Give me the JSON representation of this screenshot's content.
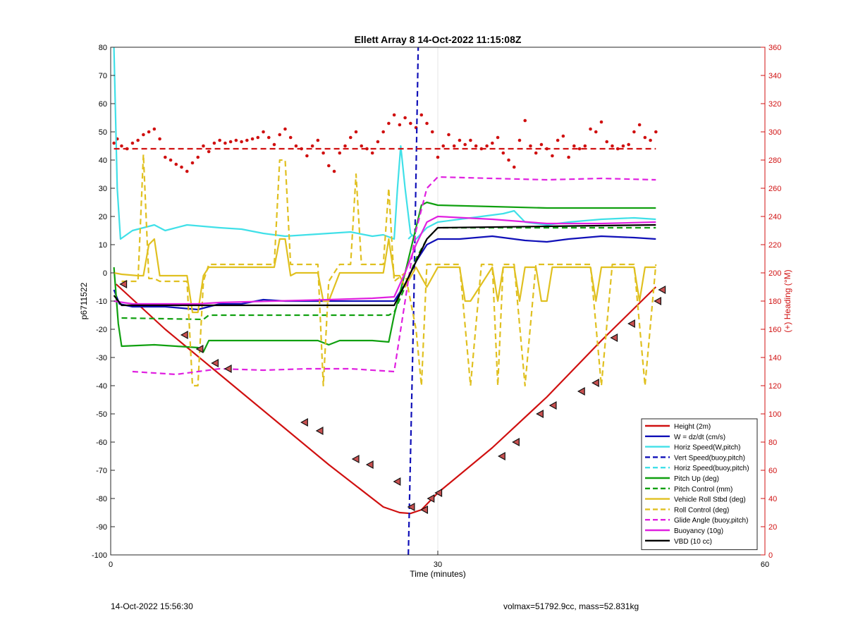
{
  "chart_data": {
    "type": "line",
    "title": "Ellett Array 8 14-Oct-2022 11:15:08Z",
    "xlabel": "Time (minutes)",
    "ylabel": "p6711522",
    "y2label": "(+) Heading (°M)",
    "xlim": [
      0,
      60
    ],
    "ylim": [
      -100,
      80
    ],
    "y2lim": [
      0,
      360
    ],
    "xticks": [
      0,
      30,
      60
    ],
    "yticks": [
      -100,
      -90,
      -80,
      -70,
      -60,
      -50,
      -40,
      -30,
      -20,
      -10,
      0,
      10,
      20,
      30,
      40,
      50,
      60,
      70,
      80
    ],
    "y2ticks": [
      0,
      20,
      40,
      60,
      80,
      100,
      120,
      140,
      160,
      180,
      200,
      220,
      240,
      260,
      280,
      300,
      320,
      340,
      360
    ],
    "grid": "x",
    "legend_position": "bottom-right",
    "colors": {
      "red": "#d01010",
      "blue": "#1010b8",
      "cyan": "#40e0e8",
      "green": "#10a010",
      "yellow": "#e0c020",
      "magenta": "#e020e0",
      "black": "#000000",
      "right_axis": "#d01010"
    },
    "series": [
      {
        "name": "Height (2m)",
        "style": "solid",
        "color": "#d01010",
        "x": [
          0.5,
          5,
          10,
          15,
          20,
          25,
          26.5,
          27.5,
          28.5,
          30,
          35,
          40,
          45,
          50
        ],
        "y": [
          -4,
          -20,
          -36,
          -52,
          -68,
          -83,
          -85,
          -85.3,
          -84,
          -78,
          -62,
          -44,
          -24,
          -5
        ]
      },
      {
        "name": "W = dz/dt (cm/s)",
        "style": "solid",
        "color": "#1010b8",
        "x": [
          0.3,
          0.8,
          2,
          5,
          8,
          9,
          10,
          12,
          14,
          16,
          20,
          24,
          26,
          27,
          28,
          29,
          30,
          32,
          35,
          38,
          40,
          42,
          45,
          48,
          50
        ],
        "y": [
          -6,
          -11,
          -12,
          -12,
          -13,
          -12,
          -11,
          -11,
          -9.5,
          -10,
          -10,
          -10,
          -10,
          -4,
          4,
          10,
          12,
          12,
          13,
          11.5,
          11,
          12,
          13,
          12.5,
          12
        ]
      },
      {
        "name": "Horiz Speed(W,pitch)",
        "style": "solid",
        "color": "#40e0e8",
        "x": [
          0.3,
          0.6,
          0.9,
          2,
          4,
          5,
          7,
          10,
          12,
          14,
          16,
          18,
          20,
          22,
          24,
          25,
          26,
          26.3,
          26.6,
          27,
          27.5,
          28,
          29,
          30,
          32,
          34,
          36,
          37,
          38,
          40,
          42,
          45,
          48,
          50
        ],
        "y": [
          80,
          30,
          12,
          15,
          17,
          15,
          17,
          16,
          15.5,
          14,
          13,
          13.5,
          14,
          14.5,
          13,
          13.5,
          12,
          30,
          45,
          30,
          14,
          12,
          16,
          18,
          19,
          20,
          21,
          22,
          18,
          17,
          18,
          19,
          19.5,
          19
        ]
      },
      {
        "name": "Vert Speed(buoy,pitch)",
        "style": "dashed",
        "color": "#1010b8",
        "x": [
          27.3,
          27.8,
          28.2
        ],
        "y": [
          -100,
          -10,
          80
        ]
      },
      {
        "name": "Horiz Speed(buoy,pitch)",
        "style": "dashed",
        "color": "#40e0e8",
        "x": [
          27.3,
          27.8
        ],
        "y": [
          12,
          14
        ]
      },
      {
        "name": "Pitch Up (deg)",
        "style": "solid",
        "color": "#10a010",
        "x": [
          0.3,
          0.7,
          1,
          4,
          6,
          8,
          8.5,
          9,
          14,
          19,
          20,
          21,
          24,
          25.5,
          26,
          27,
          28.5,
          29,
          30,
          35,
          40,
          45,
          50
        ],
        "y": [
          2,
          -18,
          -26,
          -25.5,
          -26,
          -26.5,
          -28,
          -24,
          -24,
          -24,
          -25.5,
          -24,
          -24,
          -24.5,
          -15,
          0,
          24,
          25,
          24,
          23.5,
          23,
          23,
          23
        ]
      },
      {
        "name": "Pitch Control (mm)",
        "style": "dashed",
        "color": "#10a010",
        "x": [
          1,
          8.5,
          9,
          25.5,
          26,
          27,
          28,
          29,
          30,
          50
        ],
        "y": [
          -16,
          -16.5,
          -15,
          -15,
          -14,
          -5,
          5,
          12,
          16,
          16
        ]
      },
      {
        "name": "Vehicle Roll Stbd (deg)",
        "style": "solid",
        "color": "#e0c020",
        "x": [
          0.3,
          1,
          2.5,
          3,
          3.5,
          4,
          4.5,
          7,
          7.5,
          8,
          8.5,
          9,
          15,
          15.5,
          16,
          16.5,
          17,
          19,
          19.5,
          20,
          21,
          23,
          24,
          25,
          25.5,
          26,
          26.5,
          27,
          28,
          29,
          30,
          31,
          32,
          32.5,
          33,
          35,
          35.5,
          36,
          37,
          37.5,
          38,
          39,
          39.5,
          40,
          40.5,
          41,
          44,
          44.5,
          45,
          46,
          48,
          48.5,
          49,
          50
        ],
        "y": [
          0,
          -0.5,
          -1,
          -1,
          10,
          12,
          -1,
          -1,
          -14,
          -14,
          -1,
          2,
          2,
          12,
          12,
          -1,
          0,
          0,
          -10,
          -10,
          0,
          0,
          0,
          0,
          12,
          -1,
          -1,
          -5,
          2,
          -5,
          2,
          2,
          2,
          -10,
          -10,
          2,
          -10,
          2,
          2,
          -10,
          2,
          2,
          -10,
          -10,
          2,
          2,
          2,
          -10,
          2,
          2,
          2,
          -10,
          2,
          2
        ]
      },
      {
        "name": "Roll Control (deg)",
        "style": "dashed",
        "color": "#e0c020",
        "x": [
          1,
          2.5,
          3,
          3.5,
          4,
          4.5,
          7,
          7.5,
          8,
          8.5,
          9,
          15,
          15.5,
          16,
          16.5,
          17,
          19,
          19.5,
          20,
          21,
          22,
          22.5,
          23,
          24,
          25,
          25.5,
          26,
          27,
          28,
          28.5,
          29,
          30,
          31,
          32,
          33,
          34,
          35,
          35.5,
          36,
          37,
          38,
          39,
          40,
          41,
          44,
          45,
          46,
          48,
          49,
          50
        ],
        "y": [
          -3,
          -3,
          42,
          -2,
          -2,
          -3,
          -3,
          -40,
          -40,
          -3,
          3,
          3,
          40,
          40,
          3,
          3,
          3,
          -40,
          -3,
          3,
          3,
          35,
          3,
          3,
          3,
          30,
          -3,
          0,
          -20,
          -40,
          3,
          3,
          3,
          3,
          -40,
          3,
          3,
          -40,
          3,
          3,
          -40,
          3,
          3,
          3,
          3,
          -40,
          3,
          3,
          -40,
          3
        ]
      },
      {
        "name": "Glide Angle (buoy,pitch)",
        "style": "dashed",
        "color": "#e020e0",
        "x": [
          2,
          4,
          6,
          8,
          10,
          14,
          18,
          22,
          26,
          27,
          28,
          29,
          30,
          35,
          40,
          45,
          50
        ],
        "y": [
          -35,
          -35.5,
          -36,
          -35,
          -34,
          -34.5,
          -34,
          -34,
          -35,
          -10,
          15,
          30,
          34,
          33.5,
          33,
          33.5,
          33
        ]
      },
      {
        "name": "Buoyancy (10g)",
        "style": "solid",
        "color": "#e020e0",
        "x": [
          0.3,
          2,
          8,
          10,
          15,
          20,
          24,
          26,
          27,
          28,
          29,
          30,
          35,
          40,
          45,
          50
        ],
        "y": [
          -10,
          -11,
          -11,
          -10.5,
          -10,
          -9.5,
          -9,
          -8.5,
          0,
          10,
          18,
          20,
          19,
          17.5,
          17.5,
          18
        ]
      },
      {
        "name": "VBD (10 cc)",
        "style": "solid",
        "color": "#000000",
        "x": [
          0.3,
          1,
          5,
          10,
          20,
          26,
          27,
          28,
          29,
          30,
          40,
          50
        ],
        "y": [
          -8,
          -11.5,
          -11.5,
          -11.5,
          -11.5,
          -11.5,
          -4,
          4,
          12,
          16,
          16.5,
          17
        ]
      },
      {
        "name": "Heading marker",
        "style": "dashed",
        "color": "#d01010",
        "axis": "right",
        "legend": false,
        "x": [
          0.3,
          50
        ],
        "y": [
          288,
          288
        ]
      },
      {
        "name": "Heading",
        "style": "dots",
        "color": "#d01010",
        "axis": "right",
        "legend": false,
        "x": [
          0.3,
          0.6,
          1,
          1.5,
          2,
          2.5,
          3,
          3.5,
          4,
          4.5,
          5,
          5.5,
          6,
          6.5,
          7,
          7.5,
          8,
          8.5,
          9,
          9.5,
          10,
          10.5,
          11,
          11.5,
          12,
          12.5,
          13,
          13.5,
          14,
          14.5,
          15,
          15.5,
          16,
          16.5,
          17,
          17.5,
          18,
          18.5,
          19,
          19.5,
          20,
          20.5,
          21,
          21.5,
          22,
          22.5,
          23,
          23.5,
          24,
          24.5,
          25,
          25.5,
          26,
          26.5,
          27,
          27.5,
          28,
          28.5,
          29,
          29.5,
          30,
          30.5,
          31,
          31.5,
          32,
          32.5,
          33,
          33.5,
          34,
          34.5,
          35,
          35.5,
          36,
          36.5,
          37,
          37.5,
          38,
          38.5,
          39,
          39.5,
          40,
          40.5,
          41,
          41.5,
          42,
          42.5,
          43,
          43.5,
          44,
          44.5,
          45,
          45.5,
          46,
          46.5,
          47,
          47.5,
          48,
          48.5,
          49,
          49.5,
          50
        ],
        "y": [
          292,
          295,
          290,
          288,
          292,
          294,
          298,
          300,
          302,
          295,
          282,
          280,
          277,
          275,
          272,
          278,
          282,
          290,
          286,
          292,
          294,
          292,
          293,
          294,
          293,
          294,
          295,
          296,
          300,
          296,
          291,
          298,
          302,
          296,
          290,
          288,
          283,
          290,
          294,
          285,
          276,
          272,
          285,
          290,
          296,
          300,
          290,
          288,
          285,
          293,
          300,
          306,
          312,
          305,
          310,
          306,
          303,
          312,
          306,
          300,
          282,
          290,
          298,
          290,
          294,
          291,
          294,
          290,
          288,
          290,
          292,
          296,
          285,
          280,
          275,
          294,
          308,
          290,
          285,
          291,
          288,
          283,
          294,
          297,
          282,
          290,
          288,
          290,
          302,
          300,
          307,
          293,
          290,
          288,
          290,
          291,
          300,
          305,
          296,
          294,
          300
        ]
      },
      {
        "name": "Height markers",
        "style": "markers",
        "color": "#d01010",
        "legend": false,
        "x": [
          1.2,
          6.8,
          8.2,
          9.6,
          10.8,
          17.8,
          19.2,
          22.5,
          23.8,
          26.3,
          27.6,
          28.8,
          29.4,
          30.1,
          35.9,
          37.2,
          39.4,
          40.6,
          43.2,
          44.5,
          46.2,
          47.8,
          50.2,
          50.6
        ],
        "y": [
          -4,
          -22,
          -27,
          -32,
          -34,
          -53,
          -56,
          -66,
          -68,
          -74,
          -83,
          -84,
          -80,
          -78,
          -65,
          -60,
          -50,
          -47,
          -42,
          -39,
          -23,
          -18,
          -10,
          -6
        ]
      }
    ]
  },
  "footer": {
    "left": "14-Oct-2022 15:56:30",
    "right": "volmax=51792.9cc, mass=52.831kg"
  }
}
